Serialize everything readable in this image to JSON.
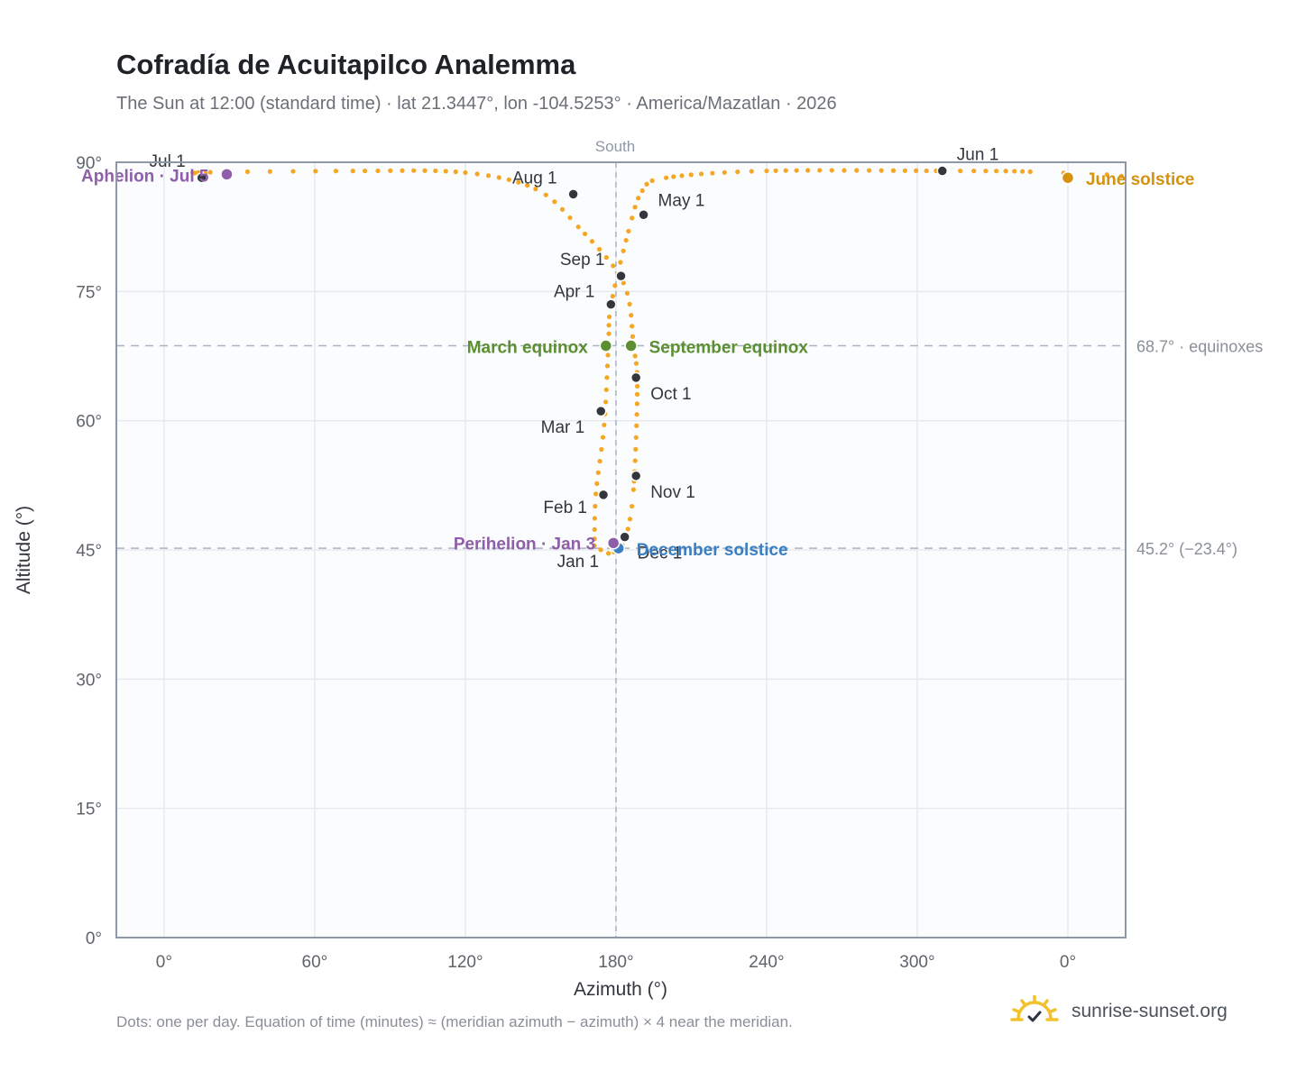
{
  "header": {
    "title": "Cofradía de Acuitapilco Analemma",
    "subtitle": "The Sun at 12:00 (standard time) · lat 21.3447°, lon -104.5253° · America/Mazatlan · 2026"
  },
  "footer": {
    "note": "Dots: one per day. Equation of time (minutes) ≈ (meridian azimuth − azimuth) × 4 near the meridian.",
    "brand": "sunrise-sunset.org"
  },
  "colors": {
    "curve": "#f5a623",
    "month_dot": "#33373d",
    "equinox": "#5b8f32",
    "june_solstice": "#d4920f",
    "december_solstice": "#3a7fc1",
    "apsis": "#8e5fa8",
    "plot_bg": "#fafcfe",
    "grid": "#e6e9ee",
    "axis_frame": "#8f98a6",
    "reference_line": "#aab3bf"
  },
  "chart_data": {
    "type": "scatter",
    "title": "Cofradía de Acuitapilco Analemma",
    "xlabel": "Azimuth (°)",
    "ylabel": "Altitude (°)",
    "x_ticks": [
      "0°",
      "60°",
      "120°",
      "180°",
      "240°",
      "300°",
      "0°"
    ],
    "y_ticks": [
      "0°",
      "15°",
      "30°",
      "45°",
      "60°",
      "75°",
      "90°"
    ],
    "x_tick_values": [
      0,
      60,
      120,
      180,
      240,
      300,
      360
    ],
    "y_tick_values": [
      0,
      15,
      30,
      45,
      60,
      75,
      90
    ],
    "xlim": [
      -19,
      383
    ],
    "ylim": [
      0,
      90
    ],
    "grid": true,
    "meridian": {
      "azimuth": 180,
      "label": "South"
    },
    "reference_lines": [
      {
        "altitude": 68.7,
        "label": "68.7° · equinoxes"
      },
      {
        "altitude": 45.2,
        "label": "45.2° (−23.4°)"
      }
    ],
    "anchor_points": [
      [
        171.4,
        45.5
      ],
      [
        172.0,
        51.5
      ],
      [
        175.3,
        59.5
      ],
      [
        177.0,
        68.7
      ],
      [
        178.0,
        73.4
      ],
      [
        185.0,
        82.0
      ],
      [
        190.5,
        86.7
      ],
      [
        200.0,
        88.2
      ],
      [
        240.0,
        89.0
      ],
      [
        311.0,
        89.0
      ],
      [
        345.0,
        88.9
      ],
      [
        360.0,
        88.3
      ],
      [
        25.0,
        88.7
      ],
      [
        80.0,
        89.0
      ],
      [
        120.0,
        88.8
      ],
      [
        148.0,
        86.9
      ],
      [
        165.0,
        82.5
      ],
      [
        183.0,
        76.0
      ],
      [
        187.0,
        68.7
      ],
      [
        188.5,
        64.0
      ],
      [
        187.0,
        52.0
      ],
      [
        184.0,
        46.5
      ],
      [
        181.0,
        45.2
      ],
      [
        177.0,
        44.6
      ],
      [
        171.4,
        45.5
      ]
    ],
    "month_points": [
      {
        "label": "Jan 1",
        "az": 179.7,
        "alt": 45.3
      },
      {
        "label": "Feb 1",
        "az": 175.0,
        "alt": 51.4
      },
      {
        "label": "Mar 1",
        "az": 174.0,
        "alt": 61.1
      },
      {
        "label": "Apr 1",
        "az": 178.0,
        "alt": 73.5
      },
      {
        "label": "May 1",
        "az": 191.0,
        "alt": 83.9
      },
      {
        "label": "Jun 1",
        "az": 310.0,
        "alt": 89.0
      },
      {
        "label": "Jul 1",
        "az": 15.0,
        "alt": 88.2
      },
      {
        "label": "Aug 1",
        "az": 163.0,
        "alt": 86.3
      },
      {
        "label": "Sep 1",
        "az": 182.0,
        "alt": 76.8
      },
      {
        "label": "Oct 1",
        "az": 188.0,
        "alt": 65.0
      },
      {
        "label": "Nov 1",
        "az": 188.0,
        "alt": 53.6
      },
      {
        "label": "Dec 1",
        "az": 183.5,
        "alt": 46.5
      }
    ],
    "events": [
      {
        "label": "March equinox",
        "az": 176.0,
        "alt": 68.7,
        "kind": "equinox"
      },
      {
        "label": "September equinox",
        "az": 186.0,
        "alt": 68.7,
        "kind": "equinox"
      },
      {
        "label": "June solstice",
        "az": 360.0,
        "alt": 88.2,
        "kind": "june_solstice"
      },
      {
        "label": "December solstice",
        "az": 181.0,
        "alt": 45.2,
        "kind": "december_solstice"
      },
      {
        "label": "Perihelion · Jan 3",
        "az": 179.0,
        "alt": 45.8,
        "kind": "apsis"
      },
      {
        "label": "Aphelion · Jul 5",
        "az": 25.0,
        "alt": 88.6,
        "kind": "apsis"
      }
    ]
  }
}
